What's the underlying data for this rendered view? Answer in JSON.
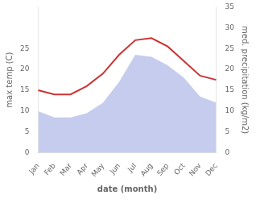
{
  "chart_data": {
    "type": "line",
    "xlabel": "date (month)",
    "ylabel": "max temp (C)",
    "y2label": "med. precipitation (kg/m2)",
    "categories": [
      "Jan",
      "Feb",
      "Mar",
      "Apr",
      "May",
      "Jun",
      "Jul",
      "Aug",
      "Sep",
      "Oct",
      "Nov",
      "Dec"
    ],
    "series": [
      {
        "type": "area",
        "color": "#c5ccee",
        "axis": "y2",
        "values": [
          10.0,
          8.5,
          8.5,
          9.5,
          12.0,
          17.0,
          23.5,
          23.0,
          21.0,
          18.0,
          13.5,
          12.0
        ]
      },
      {
        "type": "line",
        "color": "#cc3333",
        "axis": "y",
        "values": [
          15.0,
          14.0,
          14.0,
          16.0,
          19.0,
          23.5,
          27.0,
          27.5,
          25.5,
          22.0,
          18.5,
          17.5
        ]
      }
    ],
    "ylim": [
      0,
      35
    ],
    "yticks": [
      0,
      5,
      10,
      15,
      20,
      25
    ],
    "y2lim": [
      0,
      35
    ],
    "y2ticks": [
      0,
      5,
      10,
      15,
      20,
      25,
      30,
      35
    ],
    "grid": false
  }
}
